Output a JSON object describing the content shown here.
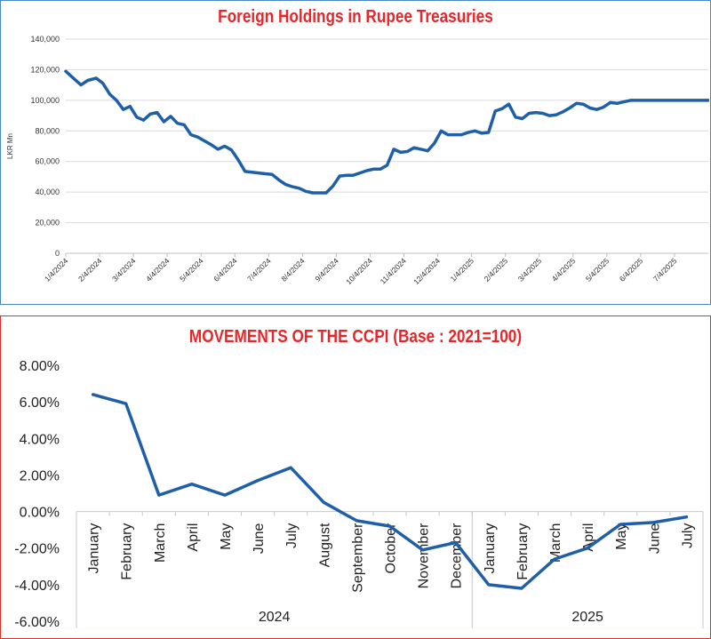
{
  "chart_data": [
    {
      "type": "line",
      "title": "Foreign Holdings in Rupee Treasuries",
      "title_color": "#e8262a",
      "line_color": "#1f5fa8",
      "ylabel": "LKR Mn",
      "xlabel": "",
      "ylim": [
        0,
        140000
      ],
      "y_ticks": [
        0,
        20000,
        40000,
        60000,
        80000,
        100000,
        120000,
        140000
      ],
      "y_tick_labels": [
        "0",
        "20,000",
        "40,000",
        "60,000",
        "80,000",
        "100,000",
        "120,000",
        "140,000"
      ],
      "x_tick_labels": [
        "1/4/2024",
        "2/4/2024",
        "3/4/2024",
        "4/4/2024",
        "5/4/2024",
        "6/4/2024",
        "7/4/2024",
        "8/4/2024",
        "9/4/2024",
        "10/4/2024",
        "11/4/2024",
        "12/4/2024",
        "1/4/2025",
        "2/4/2025",
        "3/4/2025",
        "4/4/2025",
        "5/4/2025",
        "6/4/2025",
        "7/4/2025"
      ],
      "x_range_months": [
        0,
        19
      ],
      "grid": true,
      "series": [
        {
          "x": [
            0,
            0.25,
            0.45,
            0.65,
            0.9,
            1.1,
            1.3,
            1.5,
            1.7,
            1.9,
            2.1,
            2.3,
            2.5,
            2.7,
            2.9,
            3.1,
            3.3,
            3.5,
            3.7,
            3.9,
            4.1,
            4.3,
            4.5,
            4.7,
            4.9,
            5.1,
            5.3,
            5.5,
            5.7,
            5.9,
            6.1,
            6.3,
            6.5,
            6.7,
            6.9,
            7.1,
            7.3,
            7.5,
            7.7,
            7.9,
            8.1,
            8.3,
            8.5,
            8.7,
            8.9,
            9.1,
            9.3,
            9.5,
            9.7,
            9.9,
            10.1,
            10.3,
            10.5,
            10.7,
            10.9,
            11.1,
            11.3,
            11.5,
            11.7,
            11.9,
            12.1,
            12.3,
            12.5,
            12.7,
            12.9,
            13.1,
            13.3,
            13.5,
            13.7,
            13.9,
            14.1,
            14.3,
            14.5,
            14.7,
            14.9,
            15.1,
            15.3,
            15.5,
            15.7,
            15.9,
            16.1,
            16.3,
            16.5,
            16.7,
            16.9,
            17.1,
            17.3,
            17.5,
            17.7,
            17.9,
            18.1,
            18.3,
            18.5,
            18.7,
            18.9,
            19.0
          ],
          "values": [
            119000,
            114000,
            110000,
            113000,
            114500,
            111000,
            104000,
            100000,
            94000,
            96000,
            89000,
            87000,
            91000,
            92000,
            86000,
            89500,
            85000,
            84000,
            77500,
            76000,
            73500,
            71000,
            68000,
            70000,
            67500,
            61000,
            53500,
            53000,
            52500,
            52000,
            51500,
            48000,
            45000,
            43500,
            42500,
            40500,
            39500,
            39500,
            39500,
            44000,
            50500,
            51000,
            51000,
            52500,
            54000,
            55000,
            55000,
            57500,
            68000,
            66000,
            66500,
            69000,
            68000,
            67000,
            72000,
            80000,
            77500,
            77500,
            77500,
            79000,
            80000,
            78500,
            79000,
            93000,
            94500,
            97500,
            89000,
            88000,
            91500,
            92000,
            91500,
            90000,
            90500,
            92500,
            95000,
            98000,
            97500,
            95000,
            94000,
            95500,
            98500,
            98000,
            99000,
            100000,
            100000,
            100000,
            100000,
            100000,
            100000,
            100000,
            100000,
            100000,
            100000,
            100000,
            100000,
            100000
          ]
        }
      ]
    },
    {
      "type": "line",
      "title": "MOVEMENTS OF THE CCPI (Base : 2021=100)",
      "title_color": "#e8262a",
      "line_color": "#1f5fa8",
      "xlabel": "",
      "ylabel": "",
      "ylim": [
        -6,
        8
      ],
      "y_ticks": [
        -6,
        -4,
        -2,
        0,
        2,
        4,
        6,
        8
      ],
      "y_tick_labels": [
        "-6.00%",
        "-4.00%",
        "-2.00%",
        "0.00%",
        "2.00%",
        "4.00%",
        "6.00%",
        "8.00%"
      ],
      "grid": false,
      "categories": [
        "January",
        "February",
        "March",
        "April",
        "May",
        "June",
        "July",
        "August",
        "September",
        "October",
        "November",
        "December",
        "January",
        "February",
        "March",
        "April",
        "May",
        "June",
        "July"
      ],
      "groups": [
        {
          "label": "2024",
          "count": 12
        },
        {
          "label": "2025",
          "count": 7
        }
      ],
      "series": [
        {
          "values": [
            6.4,
            5.9,
            0.9,
            1.5,
            0.9,
            1.7,
            2.4,
            0.5,
            -0.5,
            -0.8,
            -2.1,
            -1.7,
            -4.0,
            -4.2,
            -2.6,
            -2.0,
            -0.7,
            -0.6,
            -0.3
          ]
        }
      ]
    }
  ]
}
